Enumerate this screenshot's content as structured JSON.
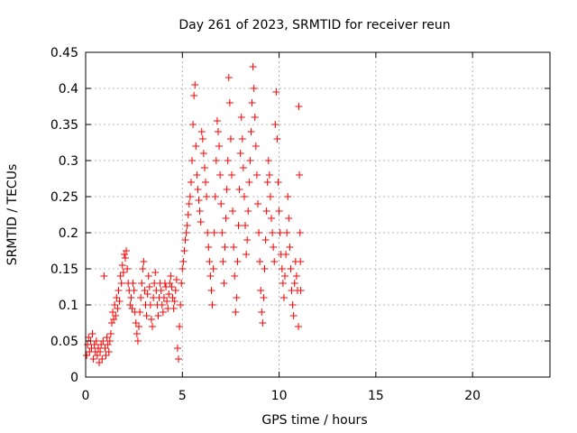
{
  "chart_data": {
    "type": "scatter",
    "title": "Day 261 of 2023, SRMTID for receiver reun",
    "xlabel": "GPS time / hours",
    "ylabel": "SRMTID / TECUs",
    "xlim": [
      0,
      24
    ],
    "ylim": [
      0,
      0.45
    ],
    "x_ticks": [
      0,
      5,
      10,
      15,
      20
    ],
    "x_tick_labels": [
      "0",
      "5",
      "10",
      "15",
      "20"
    ],
    "y_ticks": [
      0,
      0.05,
      0.1,
      0.15,
      0.2,
      0.25,
      0.3,
      0.35,
      0.4,
      0.45
    ],
    "y_tick_labels": [
      "0",
      "0.05",
      "0.1",
      "0.15",
      "0.2",
      "0.25",
      "0.3",
      "0.35",
      "0.4",
      "0.45"
    ],
    "grid": true,
    "marker": "plus",
    "marker_color": "#ff0000",
    "series": [
      {
        "name": "SRMTID",
        "points": [
          [
            0.05,
            0.03
          ],
          [
            0.1,
            0.045
          ],
          [
            0.15,
            0.055
          ],
          [
            0.2,
            0.035
          ],
          [
            0.25,
            0.05
          ],
          [
            0.3,
            0.04
          ],
          [
            0.35,
            0.06
          ],
          [
            0.4,
            0.025
          ],
          [
            0.45,
            0.045
          ],
          [
            0.5,
            0.035
          ],
          [
            0.55,
            0.05
          ],
          [
            0.6,
            0.03
          ],
          [
            0.65,
            0.04
          ],
          [
            0.7,
            0.02
          ],
          [
            0.75,
            0.035
          ],
          [
            0.8,
            0.045
          ],
          [
            0.85,
            0.025
          ],
          [
            0.9,
            0.05
          ],
          [
            0.95,
            0.14
          ],
          [
            1.0,
            0.04
          ],
          [
            1.05,
            0.03
          ],
          [
            1.1,
            0.055
          ],
          [
            1.15,
            0.045
          ],
          [
            1.2,
            0.035
          ],
          [
            1.25,
            0.05
          ],
          [
            1.3,
            0.06
          ],
          [
            1.35,
            0.075
          ],
          [
            1.4,
            0.09
          ],
          [
            1.45,
            0.08
          ],
          [
            1.5,
            0.1
          ],
          [
            1.55,
            0.085
          ],
          [
            1.6,
            0.11
          ],
          [
            1.65,
            0.095
          ],
          [
            1.7,
            0.12
          ],
          [
            1.75,
            0.105
          ],
          [
            1.8,
            0.14
          ],
          [
            1.85,
            0.13
          ],
          [
            1.9,
            0.155
          ],
          [
            1.95,
            0.145
          ],
          [
            2.0,
            0.17
          ],
          [
            2.05,
            0.165
          ],
          [
            2.1,
            0.175
          ],
          [
            2.15,
            0.15
          ],
          [
            2.2,
            0.13
          ],
          [
            2.25,
            0.12
          ],
          [
            2.3,
            0.1
          ],
          [
            2.35,
            0.11
          ],
          [
            2.4,
            0.095
          ],
          [
            2.45,
            0.13
          ],
          [
            2.5,
            0.12
          ],
          [
            2.55,
            0.09
          ],
          [
            2.6,
            0.075
          ],
          [
            2.65,
            0.06
          ],
          [
            2.7,
            0.05
          ],
          [
            2.75,
            0.07
          ],
          [
            2.8,
            0.09
          ],
          [
            2.85,
            0.11
          ],
          [
            2.9,
            0.13
          ],
          [
            2.95,
            0.15
          ],
          [
            3.0,
            0.16
          ],
          [
            3.05,
            0.12
          ],
          [
            3.1,
            0.1
          ],
          [
            3.15,
            0.085
          ],
          [
            3.2,
            0.115
          ],
          [
            3.25,
            0.14
          ],
          [
            3.3,
            0.125
          ],
          [
            3.35,
            0.1
          ],
          [
            3.4,
            0.08
          ],
          [
            3.45,
            0.07
          ],
          [
            3.5,
            0.11
          ],
          [
            3.55,
            0.13
          ],
          [
            3.6,
            0.145
          ],
          [
            3.65,
            0.12
          ],
          [
            3.7,
            0.1
          ],
          [
            3.75,
            0.085
          ],
          [
            3.8,
            0.11
          ],
          [
            3.85,
            0.13
          ],
          [
            3.9,
            0.12
          ],
          [
            3.95,
            0.1
          ],
          [
            4.0,
            0.09
          ],
          [
            4.05,
            0.11
          ],
          [
            4.1,
            0.13
          ],
          [
            4.15,
            0.125
          ],
          [
            4.2,
            0.105
          ],
          [
            4.25,
            0.095
          ],
          [
            4.3,
            0.115
          ],
          [
            4.35,
            0.13
          ],
          [
            4.4,
            0.14
          ],
          [
            4.45,
            0.125
          ],
          [
            4.5,
            0.11
          ],
          [
            4.55,
            0.095
          ],
          [
            4.6,
            0.105
          ],
          [
            4.65,
            0.12
          ],
          [
            4.7,
            0.135
          ],
          [
            4.75,
            0.04
          ],
          [
            4.8,
            0.025
          ],
          [
            4.85,
            0.07
          ],
          [
            4.9,
            0.1
          ],
          [
            4.95,
            0.13
          ],
          [
            5.0,
            0.15
          ],
          [
            5.05,
            0.16
          ],
          [
            5.1,
            0.175
          ],
          [
            5.15,
            0.19
          ],
          [
            5.2,
            0.2
          ],
          [
            5.25,
            0.21
          ],
          [
            5.3,
            0.225
          ],
          [
            5.35,
            0.24
          ],
          [
            5.4,
            0.25
          ],
          [
            5.45,
            0.27
          ],
          [
            5.5,
            0.3
          ],
          [
            5.55,
            0.35
          ],
          [
            5.6,
            0.39
          ],
          [
            5.65,
            0.405
          ],
          [
            5.7,
            0.32
          ],
          [
            5.75,
            0.28
          ],
          [
            5.8,
            0.26
          ],
          [
            5.85,
            0.245
          ],
          [
            5.9,
            0.23
          ],
          [
            5.95,
            0.215
          ],
          [
            6.0,
            0.34
          ],
          [
            6.05,
            0.33
          ],
          [
            6.1,
            0.31
          ],
          [
            6.15,
            0.29
          ],
          [
            6.2,
            0.27
          ],
          [
            6.25,
            0.25
          ],
          [
            6.3,
            0.2
          ],
          [
            6.35,
            0.18
          ],
          [
            6.4,
            0.16
          ],
          [
            6.45,
            0.14
          ],
          [
            6.5,
            0.12
          ],
          [
            6.55,
            0.1
          ],
          [
            6.6,
            0.15
          ],
          [
            6.65,
            0.2
          ],
          [
            6.7,
            0.25
          ],
          [
            6.75,
            0.3
          ],
          [
            6.8,
            0.355
          ],
          [
            6.85,
            0.34
          ],
          [
            6.9,
            0.32
          ],
          [
            6.95,
            0.28
          ],
          [
            7.0,
            0.24
          ],
          [
            7.05,
            0.2
          ],
          [
            7.1,
            0.16
          ],
          [
            7.15,
            0.13
          ],
          [
            7.2,
            0.18
          ],
          [
            7.25,
            0.22
          ],
          [
            7.3,
            0.26
          ],
          [
            7.35,
            0.3
          ],
          [
            7.4,
            0.415
          ],
          [
            7.45,
            0.38
          ],
          [
            7.5,
            0.33
          ],
          [
            7.55,
            0.28
          ],
          [
            7.6,
            0.23
          ],
          [
            7.65,
            0.18
          ],
          [
            7.7,
            0.14
          ],
          [
            7.75,
            0.09
          ],
          [
            7.8,
            0.11
          ],
          [
            7.85,
            0.16
          ],
          [
            7.9,
            0.21
          ],
          [
            7.95,
            0.26
          ],
          [
            8.0,
            0.31
          ],
          [
            8.05,
            0.36
          ],
          [
            8.1,
            0.33
          ],
          [
            8.15,
            0.29
          ],
          [
            8.2,
            0.25
          ],
          [
            8.25,
            0.21
          ],
          [
            8.3,
            0.17
          ],
          [
            8.35,
            0.19
          ],
          [
            8.4,
            0.23
          ],
          [
            8.45,
            0.27
          ],
          [
            8.5,
            0.3
          ],
          [
            8.55,
            0.34
          ],
          [
            8.6,
            0.38
          ],
          [
            8.65,
            0.43
          ],
          [
            8.7,
            0.4
          ],
          [
            8.75,
            0.36
          ],
          [
            8.8,
            0.32
          ],
          [
            8.85,
            0.28
          ],
          [
            8.9,
            0.24
          ],
          [
            8.95,
            0.2
          ],
          [
            9.0,
            0.16
          ],
          [
            9.05,
            0.12
          ],
          [
            9.1,
            0.09
          ],
          [
            9.15,
            0.075
          ],
          [
            9.2,
            0.11
          ],
          [
            9.25,
            0.15
          ],
          [
            9.3,
            0.19
          ],
          [
            9.35,
            0.23
          ],
          [
            9.4,
            0.27
          ],
          [
            9.45,
            0.3
          ],
          [
            9.5,
            0.28
          ],
          [
            9.55,
            0.25
          ],
          [
            9.6,
            0.22
          ],
          [
            9.65,
            0.2
          ],
          [
            9.7,
            0.18
          ],
          [
            9.75,
            0.16
          ],
          [
            9.8,
            0.35
          ],
          [
            9.85,
            0.395
          ],
          [
            9.9,
            0.33
          ],
          [
            9.95,
            0.27
          ],
          [
            10.0,
            0.23
          ],
          [
            10.05,
            0.2
          ],
          [
            10.1,
            0.17
          ],
          [
            10.15,
            0.15
          ],
          [
            10.2,
            0.13
          ],
          [
            10.25,
            0.11
          ],
          [
            10.3,
            0.14
          ],
          [
            10.35,
            0.17
          ],
          [
            10.4,
            0.2
          ],
          [
            10.45,
            0.25
          ],
          [
            10.5,
            0.22
          ],
          [
            10.55,
            0.18
          ],
          [
            10.6,
            0.15
          ],
          [
            10.65,
            0.12
          ],
          [
            10.7,
            0.1
          ],
          [
            10.75,
            0.085
          ],
          [
            10.8,
            0.13
          ],
          [
            10.85,
            0.16
          ],
          [
            10.9,
            0.14
          ],
          [
            10.95,
            0.12
          ],
          [
            11.0,
            0.07
          ],
          [
            11.02,
            0.375
          ],
          [
            11.05,
            0.28
          ],
          [
            11.08,
            0.2
          ],
          [
            11.1,
            0.16
          ],
          [
            11.12,
            0.12
          ]
        ]
      }
    ]
  }
}
